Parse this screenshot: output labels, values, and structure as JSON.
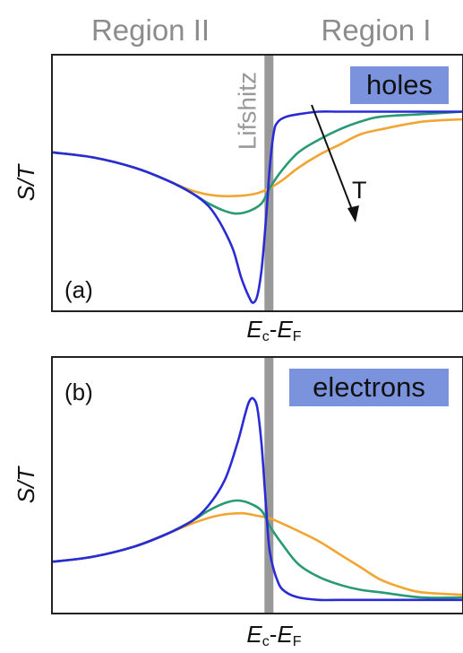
{
  "regions": {
    "left": "Region II",
    "right": "Region I"
  },
  "colors": {
    "blue": "#2b2bd6",
    "green": "#2a9a72",
    "orange": "#f2a531",
    "boundary": "#999999",
    "label_box": "#7b93dd",
    "region_text": "#8c8c8c"
  },
  "chart_data": [
    {
      "type": "line",
      "panel_label": "(a)",
      "carrier_label": "holes",
      "ylabel": "S/T",
      "xlabel": {
        "main": "E",
        "sub1": "c",
        "sep": "-",
        "main2": "E",
        "sub2": "F"
      },
      "boundary_label": "Lifshitz",
      "annotation": "T",
      "x_range": [
        0,
        1
      ],
      "y_range": [
        0,
        1
      ],
      "boundary_x": 0.528,
      "series": [
        {
          "color": "blue",
          "x": [
            0.0,
            0.1,
            0.2,
            0.28,
            0.34,
            0.38,
            0.41,
            0.44,
            0.46,
            0.48,
            0.49,
            0.5,
            0.51,
            0.52,
            0.53,
            0.54,
            0.55,
            0.57,
            0.6,
            0.65,
            0.7,
            0.8,
            0.9,
            1.0
          ],
          "y": [
            0.62,
            0.6,
            0.56,
            0.51,
            0.46,
            0.41,
            0.34,
            0.24,
            0.13,
            0.05,
            0.03,
            0.06,
            0.16,
            0.34,
            0.56,
            0.7,
            0.74,
            0.76,
            0.77,
            0.78,
            0.78,
            0.78,
            0.78,
            0.78
          ]
        },
        {
          "color": "green",
          "x": [
            0.0,
            0.1,
            0.2,
            0.28,
            0.34,
            0.38,
            0.42,
            0.45,
            0.48,
            0.51,
            0.53,
            0.56,
            0.6,
            0.65,
            0.7,
            0.75,
            0.8,
            0.9,
            1.0
          ],
          "y": [
            0.62,
            0.6,
            0.56,
            0.51,
            0.46,
            0.42,
            0.39,
            0.38,
            0.39,
            0.42,
            0.48,
            0.55,
            0.62,
            0.67,
            0.71,
            0.74,
            0.76,
            0.77,
            0.78
          ]
        },
        {
          "color": "orange",
          "x": [
            0.0,
            0.1,
            0.2,
            0.28,
            0.34,
            0.4,
            0.46,
            0.5,
            0.53,
            0.56,
            0.6,
            0.65,
            0.7,
            0.75,
            0.8,
            0.9,
            1.0
          ],
          "y": [
            0.62,
            0.6,
            0.56,
            0.51,
            0.47,
            0.45,
            0.45,
            0.46,
            0.48,
            0.51,
            0.56,
            0.61,
            0.65,
            0.69,
            0.71,
            0.74,
            0.75
          ]
        }
      ]
    },
    {
      "type": "line",
      "panel_label": "(b)",
      "carrier_label": "electrons",
      "ylabel": "S/T",
      "xlabel": {
        "main": "E",
        "sub1": "c",
        "sep": "-",
        "main2": "E",
        "sub2": "F"
      },
      "boundary_label": "",
      "annotation": "",
      "x_range": [
        0,
        1
      ],
      "y_range": [
        0,
        1
      ],
      "boundary_x": 0.528,
      "series": [
        {
          "color": "blue",
          "x": [
            0.0,
            0.1,
            0.2,
            0.28,
            0.34,
            0.38,
            0.42,
            0.45,
            0.47,
            0.48,
            0.49,
            0.5,
            0.51,
            0.52,
            0.53,
            0.55,
            0.57,
            0.6,
            0.65,
            0.7,
            0.8,
            0.9,
            1.0
          ],
          "y": [
            0.2,
            0.22,
            0.26,
            0.31,
            0.36,
            0.42,
            0.52,
            0.66,
            0.78,
            0.83,
            0.84,
            0.8,
            0.66,
            0.44,
            0.24,
            0.12,
            0.08,
            0.06,
            0.05,
            0.05,
            0.05,
            0.05,
            0.05
          ]
        },
        {
          "color": "green",
          "x": [
            0.0,
            0.1,
            0.2,
            0.28,
            0.34,
            0.38,
            0.42,
            0.45,
            0.48,
            0.51,
            0.53,
            0.56,
            0.6,
            0.65,
            0.7,
            0.75,
            0.8,
            0.9,
            1.0
          ],
          "y": [
            0.2,
            0.22,
            0.26,
            0.31,
            0.36,
            0.4,
            0.43,
            0.44,
            0.43,
            0.4,
            0.34,
            0.27,
            0.19,
            0.14,
            0.11,
            0.09,
            0.08,
            0.06,
            0.06
          ]
        },
        {
          "color": "orange",
          "x": [
            0.0,
            0.1,
            0.2,
            0.28,
            0.34,
            0.4,
            0.46,
            0.5,
            0.53,
            0.56,
            0.6,
            0.65,
            0.7,
            0.75,
            0.8,
            0.85,
            0.9,
            1.0
          ],
          "y": [
            0.2,
            0.22,
            0.26,
            0.31,
            0.35,
            0.38,
            0.39,
            0.38,
            0.37,
            0.35,
            0.32,
            0.28,
            0.23,
            0.18,
            0.13,
            0.1,
            0.08,
            0.07
          ]
        }
      ]
    }
  ]
}
